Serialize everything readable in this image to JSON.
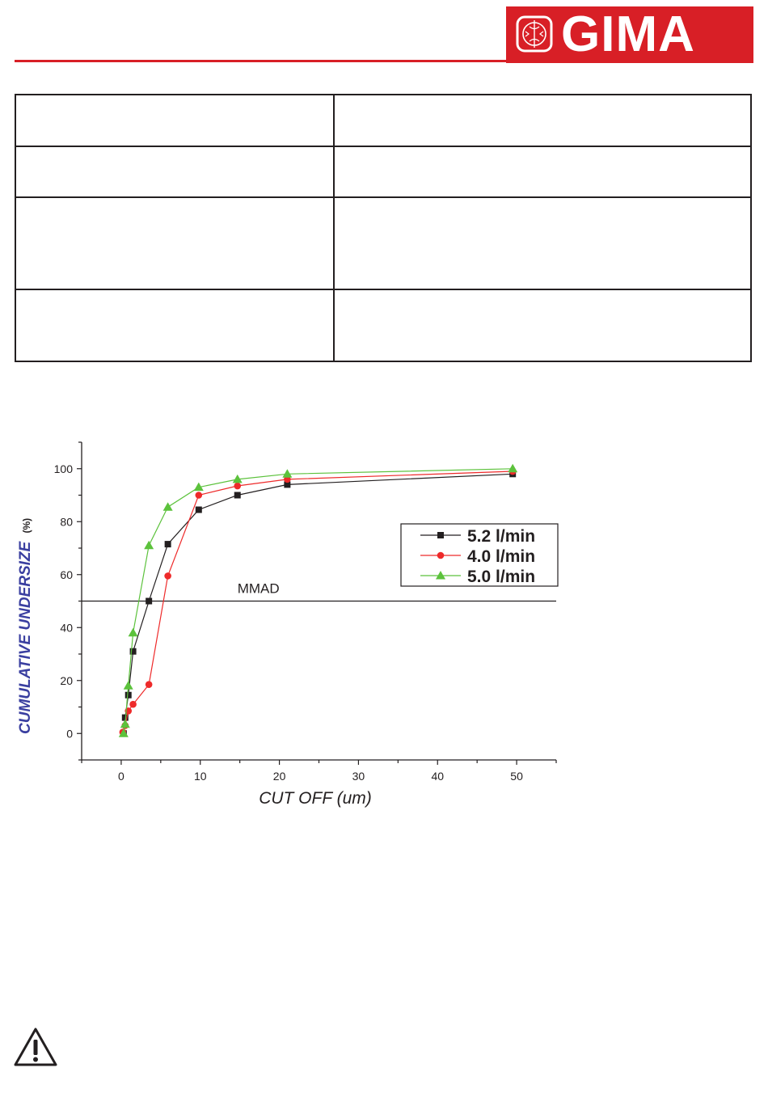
{
  "header": {
    "brand_name": "GIMA",
    "brand_color": "#d81f26",
    "logo_emblem": "gima-emblem-icon"
  },
  "spec_table": {
    "rows": [
      {
        "left": "",
        "right": ""
      },
      {
        "left": "",
        "right": ""
      },
      {
        "left": "",
        "right": ""
      },
      {
        "left": "",
        "right": ""
      }
    ]
  },
  "chart_data": {
    "type": "line",
    "title": "",
    "xlabel": "CUT OFF (um)",
    "ylabel": "CUMULATIVE UNDERSIZE",
    "ylabel_unit": "(%)",
    "xlim": [
      -5,
      55
    ],
    "ylim": [
      -10,
      110
    ],
    "x_ticks": [
      0,
      10,
      20,
      30,
      40,
      50
    ],
    "y_ticks": [
      0,
      20,
      40,
      60,
      80,
      100
    ],
    "grid": false,
    "legend_position": "right",
    "reference_line": {
      "y": 50,
      "label": "MMAD"
    },
    "series": [
      {
        "name": "5.2 l/min",
        "color": "#231f20",
        "marker": "square",
        "x": [
          0.3,
          0.5,
          0.9,
          1.5,
          3.5,
          5.9,
          9.8,
          14.7,
          21.0,
          49.5
        ],
        "y": [
          0,
          6,
          14.5,
          31,
          50,
          71.5,
          84.5,
          90,
          94,
          98
        ]
      },
      {
        "name": "4.0 l/min",
        "color": "#ee2a2a",
        "marker": "circle",
        "x": [
          0.2,
          0.5,
          0.9,
          1.5,
          3.5,
          5.9,
          9.8,
          14.7,
          21.0,
          49.5
        ],
        "y": [
          0.5,
          3,
          8.5,
          11,
          18.5,
          59.5,
          90,
          93.5,
          96,
          99
        ]
      },
      {
        "name": "5.0 l/min",
        "color": "#5cc23c",
        "marker": "triangle",
        "x": [
          0.3,
          0.5,
          0.9,
          1.5,
          3.5,
          5.9,
          9.8,
          14.7,
          21.0,
          49.5
        ],
        "y": [
          0,
          3.5,
          18,
          38,
          71,
          85.5,
          93,
          96,
          98,
          100
        ]
      }
    ]
  },
  "warning": {
    "icon": "warning-triangle-icon"
  }
}
